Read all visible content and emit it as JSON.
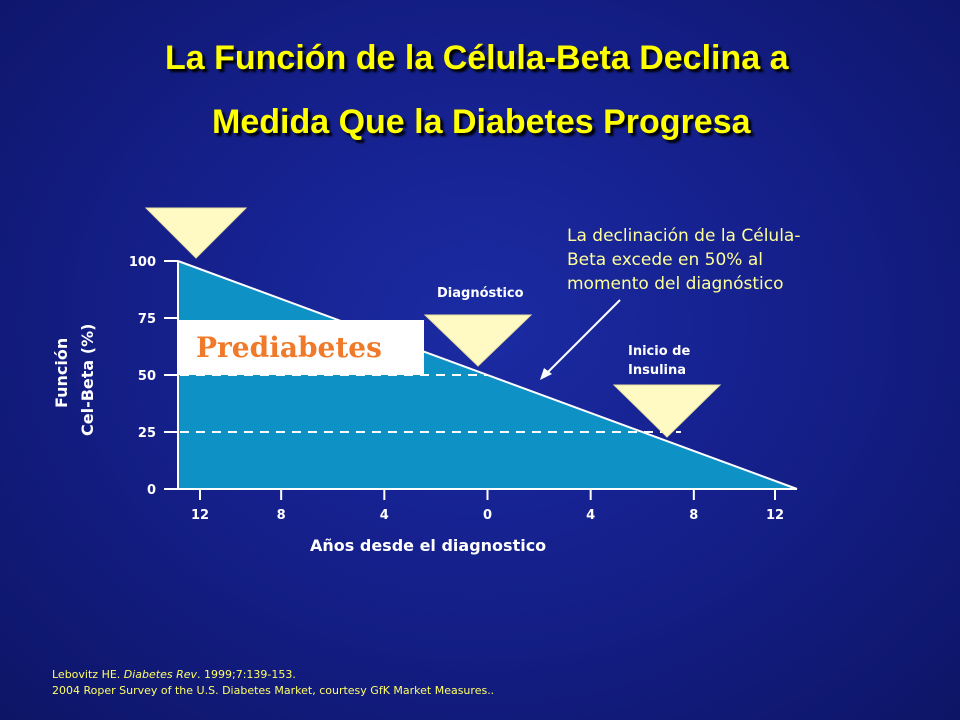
{
  "title_line1": "La Función de la Célula-Beta Declina a",
  "title_line2": "Medida Que la Diabetes Progresa",
  "chart_data": {
    "type": "area",
    "x_ticks": [
      "12",
      "8",
      "4",
      "0",
      "4",
      "8",
      "12"
    ],
    "x": [
      -12,
      12
    ],
    "values": [
      100,
      0
    ],
    "xlabel": "Años desde el diagnostico",
    "ylabel_lines": [
      "Función",
      "Cel-Beta (%)"
    ],
    "y_ticks": [
      "0",
      "25",
      "50",
      "75",
      "100"
    ],
    "ylim": [
      0,
      100
    ],
    "fill_color": "#0e91c5",
    "reference_lines": [
      {
        "y": 50,
        "x_end": 0
      },
      {
        "y": 25,
        "x_end": 7.5
      }
    ],
    "markers": [
      {
        "x": -12,
        "label": ""
      },
      {
        "x": 0,
        "label": "Diagnóstico"
      },
      {
        "x": 7.5,
        "label_lines": [
          "Inicio de",
          "Insulina"
        ]
      }
    ],
    "marker_color": "#fff9c4",
    "box_label": "Prediabetes",
    "annotation_lines": [
      "La declinación de la Célula-",
      "Beta excede en 50% al",
      "momento del diagnóstico"
    ]
  },
  "references": [
    {
      "author": "Lebovitz HE. ",
      "journal": "Diabetes Rev",
      "rest": ". 1999;7:139-153."
    },
    {
      "text": "2004 Roper Survey of the U.S. Diabetes Market, courtesy GfK Market Measures.."
    }
  ]
}
